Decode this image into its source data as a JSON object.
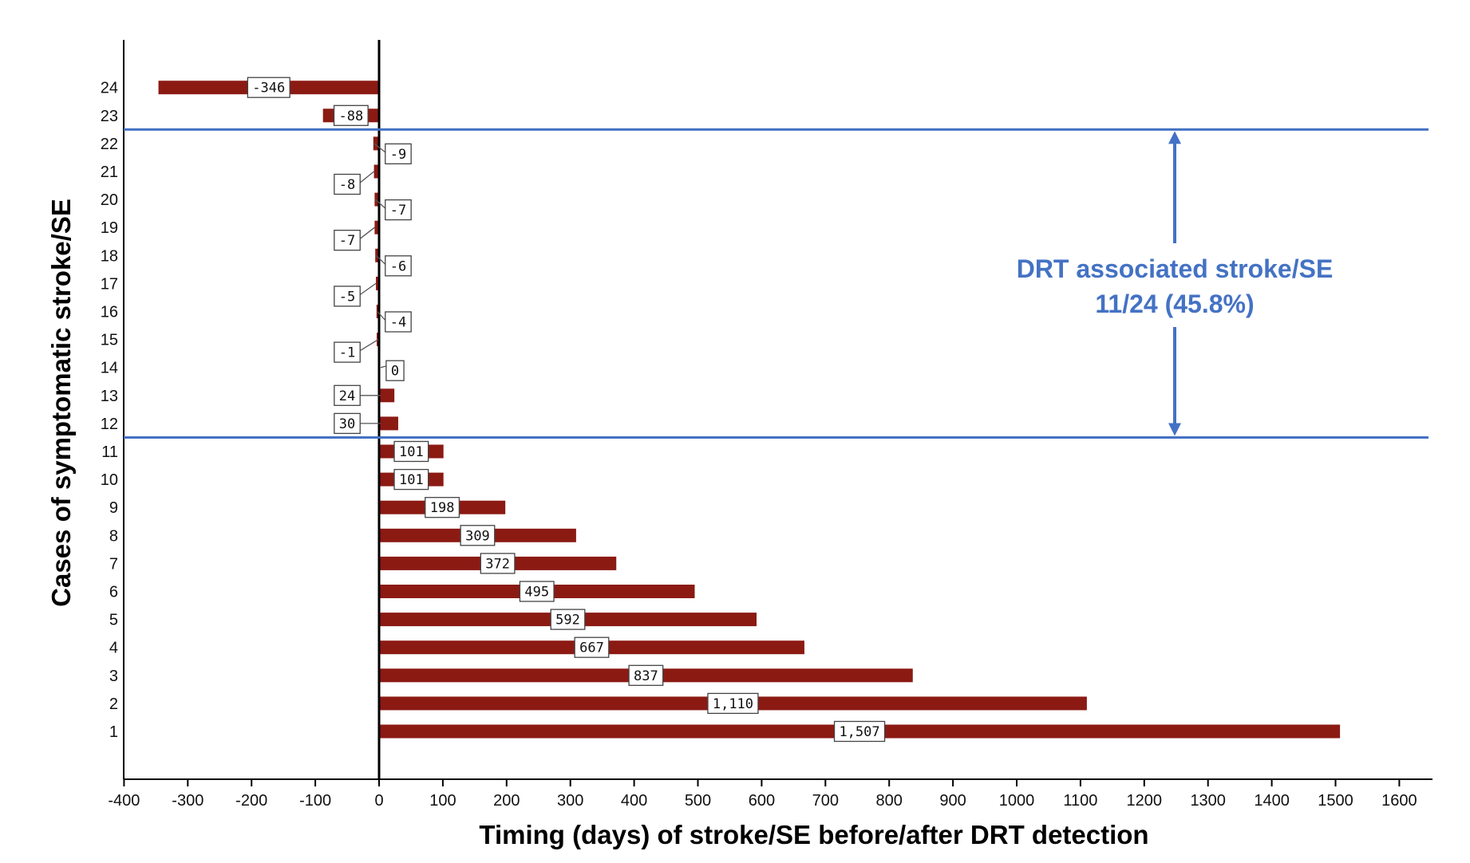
{
  "chart_data": {
    "type": "bar",
    "orientation": "horizontal",
    "ylabel": "Cases of symptomatic stroke/SE",
    "xlabel": "Timing (days) of stroke/SE before/after DRT detection",
    "xlim": [
      -400,
      1600
    ],
    "xticks": [
      "-400",
      "-300",
      "-200",
      "-100",
      "0",
      "100",
      "200",
      "300",
      "400",
      "500",
      "600",
      "700",
      "800",
      "900",
      "1000",
      "1100",
      "1200",
      "1300",
      "1400",
      "1500",
      "1600"
    ],
    "categories": [
      "1",
      "2",
      "3",
      "4",
      "5",
      "6",
      "7",
      "8",
      "9",
      "10",
      "11",
      "12",
      "13",
      "14",
      "15",
      "16",
      "17",
      "18",
      "19",
      "20",
      "21",
      "22",
      "23",
      "24"
    ],
    "values": [
      1507,
      1110,
      837,
      667,
      592,
      495,
      372,
      309,
      198,
      101,
      101,
      30,
      24,
      0,
      -1,
      -4,
      -5,
      -6,
      -7,
      -7,
      -8,
      -9,
      -88,
      -346
    ],
    "data_labels": [
      "1,507",
      "1,110",
      "837",
      "667",
      "592",
      "495",
      "372",
      "309",
      "198",
      "101",
      "101",
      "30",
      "24",
      "0",
      "-1",
      "-4",
      "-5",
      "-6",
      "-7",
      "-7",
      "-8",
      "-9",
      "-88",
      "-346"
    ],
    "bar_color": "#8b1a13",
    "annotation": {
      "line1": "DRT associated stroke/SE",
      "line2": "11/24 (45.8%)",
      "color": "#4472c4",
      "range_categories": [
        "12",
        "22"
      ]
    },
    "grid": false
  }
}
